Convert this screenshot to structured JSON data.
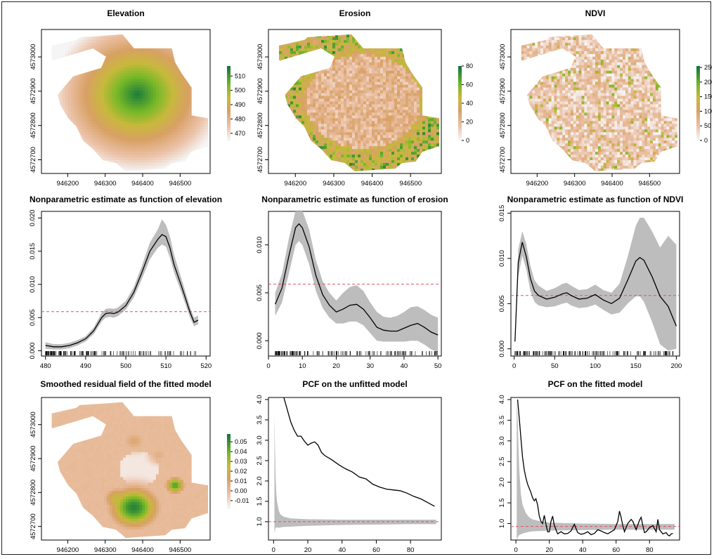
{
  "chart_data": [
    {
      "type": "heatmap",
      "title": "Elevation",
      "x_ticks": [
        946200,
        946300,
        946400,
        946500
      ],
      "y_ticks": [
        4572700,
        4572800,
        4572900,
        4573000
      ],
      "xlim": [
        946130,
        946580
      ],
      "ylim": [
        4572660,
        4573080
      ],
      "legend_ticks": [
        470,
        480,
        490,
        500,
        510
      ],
      "legend_range": [
        465,
        517
      ],
      "palette": "terrain-reversed"
    },
    {
      "type": "heatmap",
      "title": "Erosion",
      "x_ticks": [
        946200,
        946300,
        946400,
        946500
      ],
      "y_ticks": [
        4572700,
        4572800,
        4572900,
        4573000
      ],
      "xlim": [
        946130,
        946580
      ],
      "ylim": [
        4572660,
        4573080
      ],
      "legend_ticks": [
        0,
        20,
        40,
        60,
        80
      ],
      "legend_range": [
        0,
        80
      ],
      "palette": "terrain-reversed"
    },
    {
      "type": "heatmap",
      "title": "NDVI",
      "x_ticks": [
        946200,
        946300,
        946400,
        946500
      ],
      "y_ticks": [
        4572700,
        4572800,
        4572900,
        4573000
      ],
      "xlim": [
        946130,
        946580
      ],
      "ylim": [
        4572660,
        4573080
      ],
      "legend_ticks": [
        0,
        50,
        100,
        150,
        200,
        250
      ],
      "legend_range": [
        0,
        255
      ],
      "palette": "terrain-reversed"
    },
    {
      "type": "line",
      "title": "Nonparametric estimate as function of elevation",
      "xlim": [
        479,
        521
      ],
      "ylim": [
        -0.0008,
        0.021
      ],
      "x_ticks": [
        480,
        490,
        500,
        510,
        520
      ],
      "y_ticks": [
        0.0,
        0.005,
        0.01,
        0.015,
        0.02
      ],
      "y_tick_labels": [
        "0.000",
        "0.005",
        "0.010",
        "0.015",
        "0.020"
      ],
      "reference_line": 0.0059,
      "x": [
        480,
        482,
        484,
        486,
        488,
        490,
        492,
        494,
        495,
        496,
        497,
        498,
        500,
        502,
        504,
        506,
        508,
        509,
        510,
        511,
        512,
        514,
        516,
        517,
        518
      ],
      "y": [
        0.0008,
        0.0006,
        0.0006,
        0.0008,
        0.0012,
        0.0018,
        0.003,
        0.005,
        0.0056,
        0.0057,
        0.0056,
        0.0058,
        0.0068,
        0.0088,
        0.0118,
        0.015,
        0.0168,
        0.0175,
        0.0172,
        0.0155,
        0.013,
        0.0095,
        0.0058,
        0.0043,
        0.0046
      ],
      "lower": [
        0.0003,
        0.0002,
        0.0002,
        0.0004,
        0.0008,
        0.0014,
        0.0025,
        0.0044,
        0.005,
        0.0051,
        0.005,
        0.0052,
        0.0062,
        0.008,
        0.0108,
        0.0138,
        0.0155,
        0.016,
        0.0157,
        0.014,
        0.0118,
        0.0085,
        0.005,
        0.0037,
        0.004
      ],
      "upper": [
        0.0013,
        0.001,
        0.001,
        0.0012,
        0.0016,
        0.0022,
        0.0035,
        0.0057,
        0.0063,
        0.0064,
        0.0063,
        0.0065,
        0.0075,
        0.0096,
        0.0128,
        0.0163,
        0.0183,
        0.0198,
        0.019,
        0.0172,
        0.0145,
        0.0106,
        0.0066,
        0.005,
        0.0053
      ]
    },
    {
      "type": "line",
      "title": "Nonparametric estimate as function of erosion",
      "xlim": [
        0,
        51
      ],
      "ylim": [
        -0.0016,
        0.0135
      ],
      "x_ticks": [
        0,
        10,
        20,
        30,
        40,
        50
      ],
      "y_ticks": [
        0.0,
        0.005,
        0.01
      ],
      "y_tick_labels": [
        "0.000",
        "0.005",
        "0.010"
      ],
      "reference_line": 0.0059,
      "x": [
        2,
        4,
        6,
        8,
        9,
        10,
        12,
        14,
        16,
        18,
        20,
        22,
        24,
        26,
        28,
        30,
        32,
        34,
        36,
        38,
        40,
        42,
        44,
        46,
        48,
        50
      ],
      "y": [
        0.0038,
        0.0055,
        0.0088,
        0.0118,
        0.0122,
        0.0118,
        0.0098,
        0.0068,
        0.0048,
        0.0037,
        0.003,
        0.0033,
        0.0037,
        0.0038,
        0.0033,
        0.0024,
        0.0014,
        0.0011,
        0.001,
        0.001,
        0.0013,
        0.0016,
        0.0018,
        0.0014,
        0.0009,
        0.0006
      ],
      "lower": [
        0.0026,
        0.004,
        0.007,
        0.01,
        0.0104,
        0.01,
        0.008,
        0.0052,
        0.0034,
        0.0024,
        0.0018,
        0.0018,
        0.002,
        0.002,
        0.0016,
        0.0008,
        0.0,
        -0.0001,
        -0.0001,
        -0.0001,
        -0.0001,
        0.0,
        0.0,
        -0.0004,
        -0.0009,
        -0.0012
      ],
      "upper": [
        0.005,
        0.007,
        0.0106,
        0.0136,
        0.014,
        0.0136,
        0.0116,
        0.0084,
        0.0062,
        0.005,
        0.0042,
        0.005,
        0.0056,
        0.0058,
        0.0052,
        0.004,
        0.003,
        0.0025,
        0.0024,
        0.0026,
        0.003,
        0.0035,
        0.0036,
        0.0032,
        0.0027,
        0.0024
      ]
    },
    {
      "type": "line",
      "title": "Nonparametric estimate as function of NDVI",
      "xlim": [
        -4,
        204
      ],
      "ylim": [
        -0.0008,
        0.0152
      ],
      "x_ticks": [
        0,
        50,
        100,
        150,
        200
      ],
      "y_ticks": [
        0.0,
        0.005,
        0.01,
        0.015
      ],
      "y_tick_labels": [
        "0.000",
        "0.005",
        "0.010",
        "0.015"
      ],
      "reference_line": 0.0059,
      "x": [
        1,
        5,
        10,
        15,
        20,
        25,
        30,
        40,
        50,
        60,
        65,
        70,
        80,
        90,
        100,
        110,
        120,
        130,
        140,
        150,
        155,
        160,
        170,
        180,
        190,
        200
      ],
      "y": [
        0.0008,
        0.0095,
        0.0118,
        0.0102,
        0.0078,
        0.0064,
        0.0059,
        0.0055,
        0.0057,
        0.0061,
        0.0062,
        0.0059,
        0.0055,
        0.0056,
        0.006,
        0.0054,
        0.005,
        0.0056,
        0.0076,
        0.0097,
        0.0101,
        0.0098,
        0.008,
        0.0058,
        0.0047,
        0.0025
      ],
      "lower": [
        0.0006,
        0.008,
        0.0103,
        0.0088,
        0.0064,
        0.0052,
        0.0048,
        0.0046,
        0.0047,
        0.005,
        0.0051,
        0.0048,
        0.0045,
        0.0046,
        0.0049,
        0.0043,
        0.0038,
        0.004,
        0.005,
        0.0058,
        0.0058,
        0.0052,
        0.003,
        0.0005,
        -0.0002,
        0.0
      ],
      "upper": [
        0.001,
        0.011,
        0.013,
        0.0116,
        0.0092,
        0.0076,
        0.007,
        0.0064,
        0.0067,
        0.0072,
        0.0073,
        0.007,
        0.0065,
        0.0066,
        0.0071,
        0.0065,
        0.0062,
        0.0072,
        0.0102,
        0.0136,
        0.0145,
        0.0145,
        0.013,
        0.0112,
        0.0125,
        0.0115
      ]
    },
    {
      "type": "heatmap",
      "title": "Smoothed residual field of the fitted model",
      "x_ticks": [
        946200,
        946300,
        946400,
        946500
      ],
      "y_ticks": [
        4572700,
        4572800,
        4572900,
        4573000
      ],
      "xlim": [
        946130,
        946580
      ],
      "ylim": [
        4572660,
        4573080
      ],
      "legend_ticks": [
        -0.01,
        0.0,
        0.01,
        0.02,
        0.03,
        0.04,
        0.05
      ],
      "legend_tick_labels": [
        "-0.01",
        "0.00",
        "0.01",
        "0.02",
        "0.03",
        "0.04",
        "0.05"
      ],
      "legend_range": [
        -0.018,
        0.058
      ],
      "palette": "terrain-reversed"
    },
    {
      "type": "line",
      "title": "PCF on the unfitted model",
      "xlim": [
        -3,
        98
      ],
      "ylim": [
        0.55,
        4.05
      ],
      "x_ticks": [
        0,
        20,
        40,
        60,
        80
      ],
      "y_ticks": [
        1.0,
        1.5,
        2.0,
        2.5,
        3.0,
        3.5,
        4.0
      ],
      "y_tick_labels": [
        "1.0",
        "1.5",
        "2.0",
        "2.5",
        "3.0",
        "3.5",
        "4.0"
      ],
      "reference_line": 1.0,
      "x": [
        6,
        8,
        10,
        12,
        14,
        16,
        18,
        20,
        22,
        24,
        26,
        28,
        30,
        34,
        38,
        42,
        46,
        50,
        54,
        58,
        62,
        66,
        70,
        74,
        78,
        82,
        86,
        90,
        94
      ],
      "y": [
        4.05,
        3.75,
        3.45,
        3.25,
        3.1,
        3.1,
        2.98,
        2.88,
        2.93,
        2.96,
        2.88,
        2.7,
        2.62,
        2.52,
        2.4,
        2.3,
        2.22,
        2.1,
        2.05,
        1.92,
        1.85,
        1.8,
        1.78,
        1.76,
        1.7,
        1.62,
        1.56,
        1.47,
        1.38
      ],
      "envelope_x": [
        0.5,
        0.8,
        1.2,
        1.6,
        2,
        3,
        4,
        6,
        10,
        20,
        40,
        60,
        80,
        95
      ],
      "envelope_lower": [
        0.7,
        0.8,
        0.85,
        0.86,
        0.86,
        0.85,
        0.86,
        0.87,
        0.88,
        0.9,
        0.92,
        0.93,
        0.94,
        0.94
      ],
      "envelope_upper": [
        3.65,
        2.8,
        2.1,
        1.7,
        1.5,
        1.28,
        1.18,
        1.12,
        1.08,
        1.06,
        1.05,
        1.05,
        1.05,
        1.05
      ]
    },
    {
      "type": "line",
      "title": "PCF on the fitted model",
      "xlim": [
        -3,
        98
      ],
      "ylim": [
        0.6,
        4.05
      ],
      "x_ticks": [
        0,
        20,
        40,
        60,
        80
      ],
      "y_ticks": [
        1.0,
        1.5,
        2.0,
        2.5,
        3.0,
        3.5,
        4.0
      ],
      "y_tick_labels": [
        "1.0",
        "1.5",
        "2.0",
        "2.5",
        "3.0",
        "3.5",
        "4.0"
      ],
      "reference_line": 0.93,
      "x": [
        1,
        2,
        3,
        4,
        5,
        6,
        7,
        8,
        9,
        10,
        11,
        12,
        13,
        14,
        15,
        16,
        17,
        18,
        19,
        20,
        21,
        22,
        23,
        25,
        27,
        29,
        31,
        33,
        35,
        37,
        39,
        41,
        43,
        45,
        47,
        49,
        51,
        53,
        55,
        57,
        59,
        61,
        62,
        63,
        64,
        65,
        67,
        69,
        70,
        72,
        74,
        75,
        76,
        77,
        78,
        80,
        82,
        84,
        85,
        86,
        88,
        90,
        91,
        92,
        93,
        94
      ],
      "y": [
        4.0,
        3.55,
        3.05,
        2.6,
        2.3,
        2.1,
        1.95,
        1.85,
        1.75,
        1.62,
        1.55,
        1.6,
        1.45,
        1.18,
        1.05,
        1.0,
        1.2,
        0.98,
        0.8,
        0.8,
        1.05,
        1.18,
        0.95,
        0.75,
        0.8,
        0.75,
        0.76,
        0.82,
        0.98,
        0.78,
        0.74,
        0.76,
        0.8,
        0.73,
        0.76,
        0.85,
        0.82,
        0.78,
        0.75,
        0.8,
        0.85,
        1.05,
        1.3,
        1.15,
        0.95,
        0.8,
        1.0,
        1.1,
        1.05,
        0.85,
        1.08,
        1.15,
        0.95,
        0.78,
        0.8,
        0.9,
        0.95,
        0.8,
        1.1,
        0.85,
        0.75,
        0.78,
        0.72,
        0.7,
        0.75,
        0.76
      ],
      "envelope_x": [
        0.5,
        1,
        1.5,
        2,
        3,
        4,
        6,
        8,
        10,
        15,
        20,
        40,
        60,
        80,
        95
      ],
      "envelope_lower": [
        0.6,
        0.65,
        0.7,
        0.72,
        0.74,
        0.76,
        0.78,
        0.8,
        0.81,
        0.82,
        0.83,
        0.84,
        0.85,
        0.85,
        0.85
      ],
      "envelope_upper": [
        4.0,
        3.6,
        2.9,
        2.3,
        1.7,
        1.45,
        1.25,
        1.15,
        1.1,
        1.05,
        1.02,
        1.0,
        0.99,
        0.99,
        0.99
      ]
    }
  ]
}
